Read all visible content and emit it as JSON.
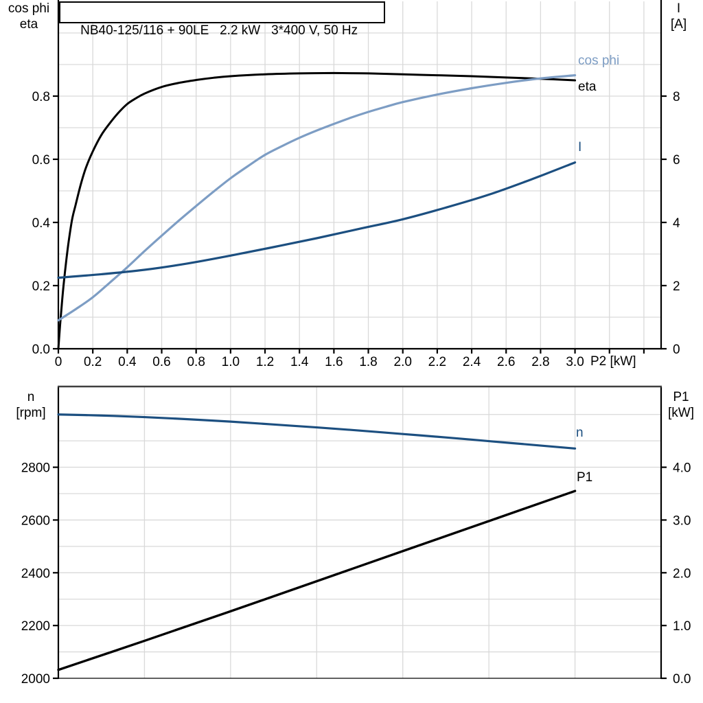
{
  "title_box": {
    "text": "NB40-125/116 + 90LE   2.2 kW   3*400 V, 50 Hz"
  },
  "colors": {
    "background": "#ffffff",
    "grid": "#d9d9d9",
    "axis": "#000000",
    "top_frame": "#3f3f3f",
    "eta": "#000000",
    "cos_phi": "#7d9dc4",
    "current": "#1c4f80",
    "speed": "#1c4f80",
    "p1": "#000000",
    "text": "#000000"
  },
  "chart_data": [
    {
      "type": "line",
      "name": "efficiency-cosphi-current-vs-P2",
      "x_axis": {
        "label": "P2 [kW]",
        "min": 0,
        "max": 3.5,
        "grid_step": 0.2,
        "ticks": [
          [
            0,
            "0"
          ],
          [
            0.2,
            "0.2"
          ],
          [
            0.4,
            "0.4"
          ],
          [
            0.6,
            "0.6"
          ],
          [
            0.8,
            "0.8"
          ],
          [
            1.0,
            "1.0"
          ],
          [
            1.2,
            "1.2"
          ],
          [
            1.4,
            "1.4"
          ],
          [
            1.6,
            "1.6"
          ],
          [
            1.8,
            "1.8"
          ],
          [
            2.0,
            "2.0"
          ],
          [
            2.2,
            "2.2"
          ],
          [
            2.4,
            "2.4"
          ],
          [
            2.6,
            "2.6"
          ],
          [
            2.8,
            "2.8"
          ],
          [
            3.0,
            "3.0"
          ]
        ],
        "unlabeled_ticks": [
          3.2,
          3.4
        ]
      },
      "y_left": {
        "header_lines": [
          "cos phi",
          "eta"
        ],
        "min": 0,
        "max": 1.1,
        "grid_step": 0.1,
        "ticks": [
          [
            0.0,
            "0.0"
          ],
          [
            0.2,
            "0.2"
          ],
          [
            0.4,
            "0.4"
          ],
          [
            0.6,
            "0.6"
          ],
          [
            0.8,
            "0.8"
          ]
        ]
      },
      "y_right": {
        "header_lines": [
          "I",
          "[A]"
        ],
        "min": 0,
        "max": 11,
        "ticks": [
          [
            0,
            "0"
          ],
          [
            2,
            "2"
          ],
          [
            4,
            "4"
          ],
          [
            6,
            "6"
          ],
          [
            8,
            "8"
          ]
        ]
      },
      "series": [
        {
          "name": "eta",
          "axis": "left",
          "color": "#000000",
          "width": 3,
          "points": [
            [
              0,
              0
            ],
            [
              0.01,
              0.075
            ],
            [
              0.02,
              0.14
            ],
            [
              0.03,
              0.2
            ],
            [
              0.045,
              0.275
            ],
            [
              0.06,
              0.34
            ],
            [
              0.08,
              0.41
            ],
            [
              0.1,
              0.455
            ],
            [
              0.13,
              0.52
            ],
            [
              0.16,
              0.573
            ],
            [
              0.2,
              0.625
            ],
            [
              0.25,
              0.677
            ],
            [
              0.3,
              0.715
            ],
            [
              0.35,
              0.748
            ],
            [
              0.4,
              0.775
            ],
            [
              0.45,
              0.793
            ],
            [
              0.5,
              0.808
            ],
            [
              0.6,
              0.829
            ],
            [
              0.7,
              0.842
            ],
            [
              0.8,
              0.851
            ],
            [
              0.9,
              0.858
            ],
            [
              1.0,
              0.863
            ],
            [
              1.2,
              0.869
            ],
            [
              1.4,
              0.872
            ],
            [
              1.6,
              0.873
            ],
            [
              1.8,
              0.872
            ],
            [
              2.0,
              0.869
            ],
            [
              2.2,
              0.866
            ],
            [
              2.4,
              0.863
            ],
            [
              2.6,
              0.859
            ],
            [
              2.8,
              0.855
            ],
            [
              3.0,
              0.85
            ]
          ]
        },
        {
          "name": "cos phi",
          "axis": "left",
          "color": "#7d9dc4",
          "width": 3.2,
          "points": [
            [
              0,
              0.09
            ],
            [
              0.1,
              0.125
            ],
            [
              0.2,
              0.163
            ],
            [
              0.3,
              0.21
            ],
            [
              0.4,
              0.258
            ],
            [
              0.5,
              0.309
            ],
            [
              0.6,
              0.358
            ],
            [
              0.7,
              0.406
            ],
            [
              0.8,
              0.452
            ],
            [
              0.9,
              0.497
            ],
            [
              1.0,
              0.54
            ],
            [
              1.1,
              0.578
            ],
            [
              1.2,
              0.614
            ],
            [
              1.3,
              0.642
            ],
            [
              1.4,
              0.668
            ],
            [
              1.5,
              0.691
            ],
            [
              1.6,
              0.712
            ],
            [
              1.7,
              0.732
            ],
            [
              1.8,
              0.75
            ],
            [
              1.9,
              0.766
            ],
            [
              2.0,
              0.781
            ],
            [
              2.2,
              0.805
            ],
            [
              2.4,
              0.825
            ],
            [
              2.6,
              0.842
            ],
            [
              2.8,
              0.856
            ],
            [
              3.0,
              0.866
            ]
          ]
        },
        {
          "name": "I",
          "axis": "right",
          "color": "#1c4f80",
          "width": 3.2,
          "points": [
            [
              0,
              2.25
            ],
            [
              0.25,
              2.36
            ],
            [
              0.5,
              2.5
            ],
            [
              0.75,
              2.7
            ],
            [
              1.0,
              2.95
            ],
            [
              1.25,
              3.22
            ],
            [
              1.5,
              3.5
            ],
            [
              1.75,
              3.8
            ],
            [
              2.0,
              4.1
            ],
            [
              2.25,
              4.47
            ],
            [
              2.5,
              4.88
            ],
            [
              2.75,
              5.37
            ],
            [
              3.0,
              5.9
            ]
          ]
        }
      ]
    },
    {
      "type": "line",
      "name": "speed-and-input-power-vs-P2",
      "x_axis": {
        "label": "",
        "min": 0,
        "max": 3.5,
        "grid_step": 0.5,
        "ticks": [],
        "unlabeled_ticks": []
      },
      "y_left": {
        "header_lines": [
          "n",
          "[rpm]"
        ],
        "min": 2000,
        "max": 3106,
        "grid_step": 100,
        "ticks": [
          [
            2000,
            "2000"
          ],
          [
            2200,
            "2200"
          ],
          [
            2400,
            "2400"
          ],
          [
            2600,
            "2600"
          ],
          [
            2800,
            "2800"
          ]
        ]
      },
      "y_right": {
        "header_lines": [
          "P1",
          "[kW]"
        ],
        "min": 0,
        "max": 5.53,
        "ticks": [
          [
            0,
            "0.0"
          ],
          [
            1,
            "1.0"
          ],
          [
            2,
            "2.0"
          ],
          [
            3,
            "3.0"
          ],
          [
            4,
            "4.0"
          ]
        ]
      },
      "series": [
        {
          "name": "n",
          "axis": "left",
          "color": "#1c4f80",
          "width": 3.2,
          "points": [
            [
              0,
              3000
            ],
            [
              0.25,
              2996
            ],
            [
              0.5,
              2990
            ],
            [
              0.75,
              2982
            ],
            [
              1.0,
              2973
            ],
            [
              1.25,
              2962
            ],
            [
              1.5,
              2951
            ],
            [
              1.75,
              2939
            ],
            [
              2.0,
              2926
            ],
            [
              2.25,
              2913
            ],
            [
              2.5,
              2899
            ],
            [
              2.75,
              2885
            ],
            [
              3.0,
              2871
            ]
          ]
        },
        {
          "name": "P1",
          "axis": "right",
          "color": "#000000",
          "width": 3.4,
          "points": [
            [
              0,
              0.16
            ],
            [
              0.5,
              0.71
            ],
            [
              1.0,
              1.27
            ],
            [
              1.5,
              1.84
            ],
            [
              2.0,
              2.41
            ],
            [
              2.5,
              2.98
            ],
            [
              3.0,
              3.55
            ]
          ]
        }
      ]
    }
  ]
}
